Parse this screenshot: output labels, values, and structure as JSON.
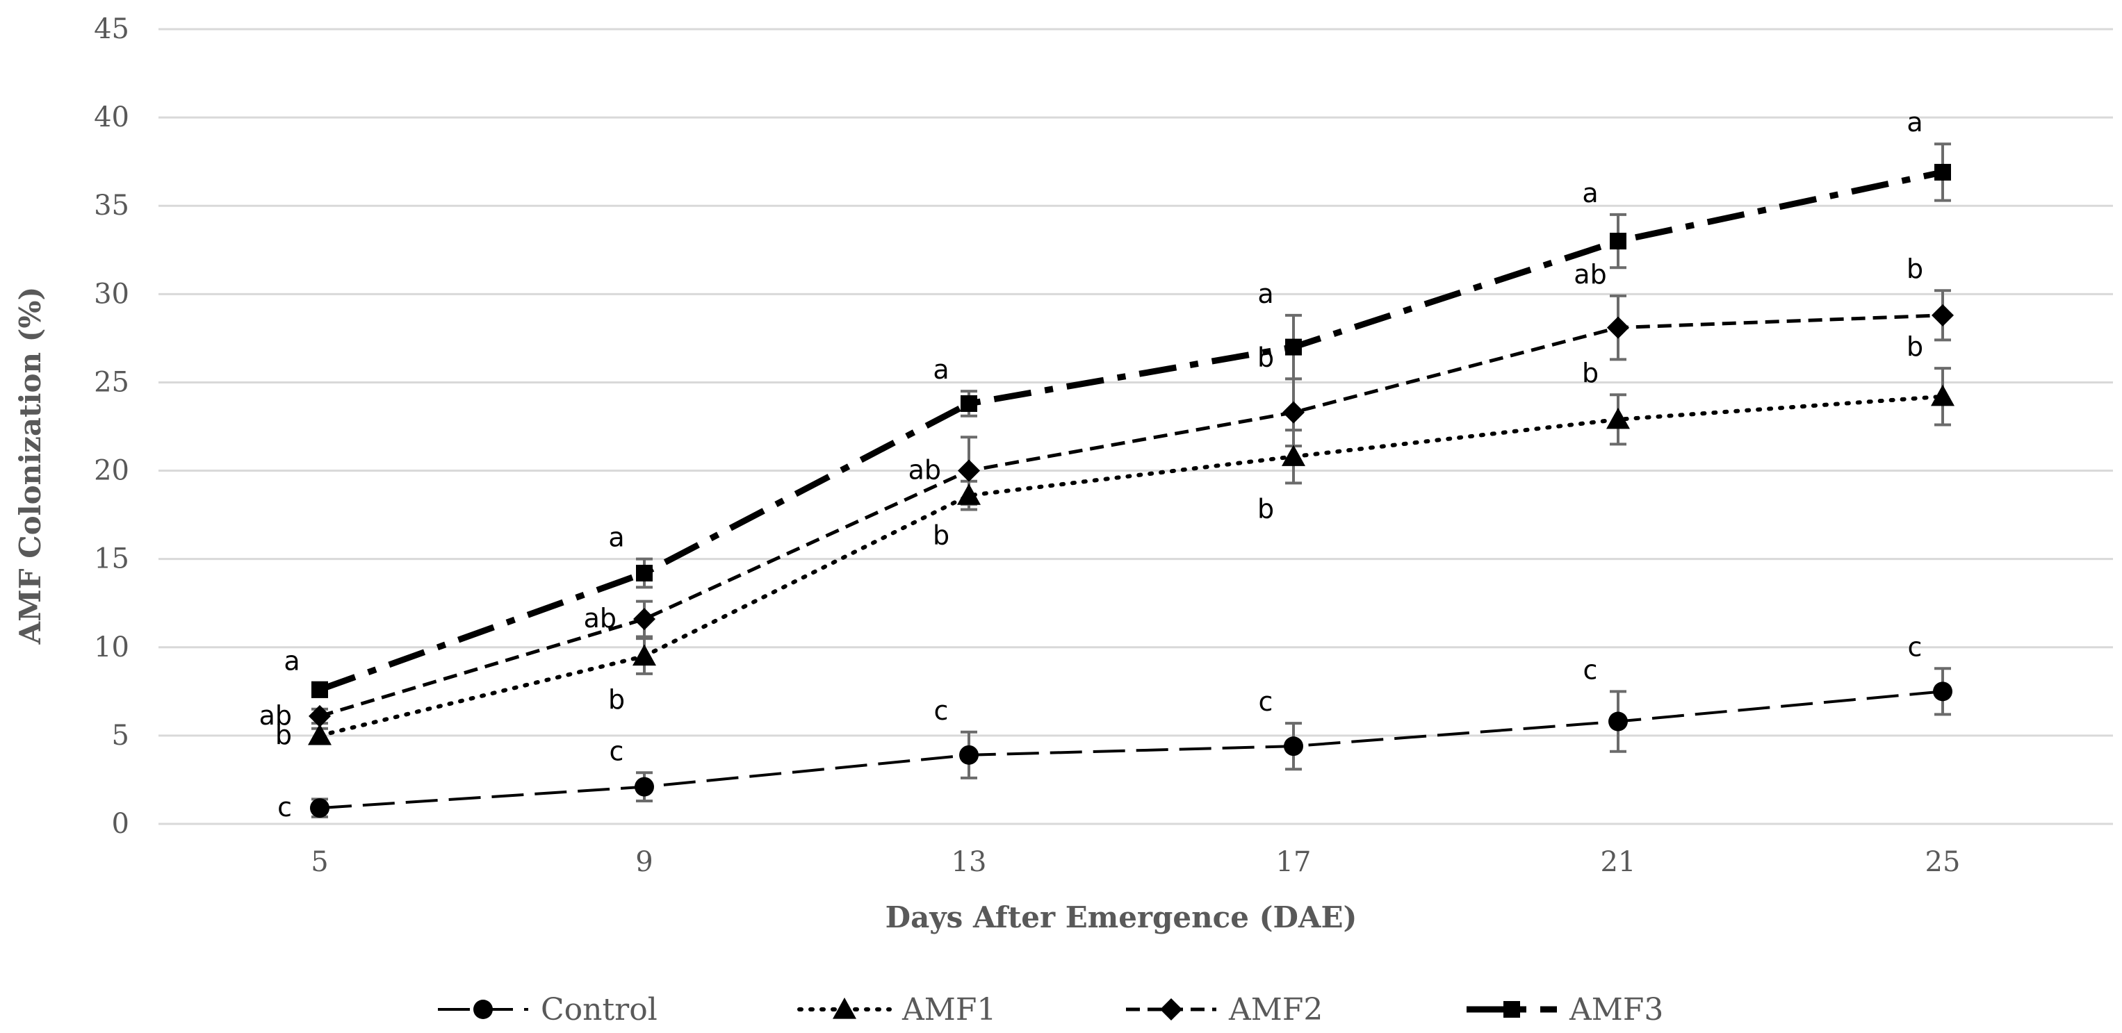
{
  "chart_data": {
    "type": "line",
    "title": "",
    "xlabel": "Days After Emergence (DAE)",
    "ylabel": "AMF Colonization (%)",
    "x": [
      5,
      9,
      13,
      17,
      21,
      25
    ],
    "x_tick_labels": [
      "5",
      "9",
      "13",
      "17",
      "21",
      "25"
    ],
    "ylim": [
      0,
      45
    ],
    "y_ticks": [
      0,
      5,
      10,
      15,
      20,
      25,
      30,
      35,
      40,
      45
    ],
    "y_tick_labels": [
      "0",
      "5",
      "10",
      "15",
      "20",
      "25",
      "30",
      "35",
      "40",
      "45"
    ],
    "grid": true,
    "legend_position": "bottom",
    "series": [
      {
        "name": "Control",
        "marker": "circle",
        "line_style": "long-dash",
        "values": [
          0.9,
          2.1,
          3.9,
          4.4,
          5.8,
          7.5
        ],
        "errors": [
          0.5,
          0.8,
          1.3,
          1.3,
          1.7,
          1.3
        ],
        "sig_letters": [
          "c",
          "c",
          "c",
          "c",
          "c",
          "c"
        ],
        "letter_placement": [
          "left",
          "above",
          "above",
          "above",
          "above",
          "above"
        ]
      },
      {
        "name": "AMF1",
        "marker": "triangle",
        "line_style": "dotted",
        "values": [
          5.0,
          9.5,
          18.6,
          20.8,
          22.9,
          24.2
        ],
        "errors": [
          0.4,
          1.0,
          0.8,
          1.5,
          1.4,
          1.6
        ],
        "sig_letters": [
          "b",
          "b",
          "b",
          "b",
          "b",
          "b"
        ],
        "letter_placement": [
          "left",
          "below",
          "below",
          "below",
          "above",
          "above"
        ]
      },
      {
        "name": "AMF2",
        "marker": "diamond",
        "line_style": "dashed",
        "values": [
          6.1,
          11.6,
          20.0,
          23.3,
          28.1,
          28.8
        ],
        "errors": [
          0.4,
          1.0,
          1.9,
          1.9,
          1.8,
          1.4
        ],
        "sig_letters": [
          "ab",
          "ab",
          "ab",
          "b",
          "ab",
          "b"
        ],
        "letter_placement": [
          "left",
          "left",
          "left",
          "above",
          "above",
          "above"
        ]
      },
      {
        "name": "AMF3",
        "marker": "square",
        "line_style": "dash-dot",
        "values": [
          7.6,
          14.2,
          23.8,
          27.0,
          33.0,
          36.9
        ],
        "errors": [
          0.4,
          0.8,
          0.7,
          1.8,
          1.5,
          1.6
        ],
        "sig_letters": [
          "a",
          "a",
          "a",
          "a",
          "a",
          "a"
        ],
        "letter_placement": [
          "above",
          "above",
          "above",
          "above",
          "above",
          "above"
        ]
      }
    ]
  }
}
